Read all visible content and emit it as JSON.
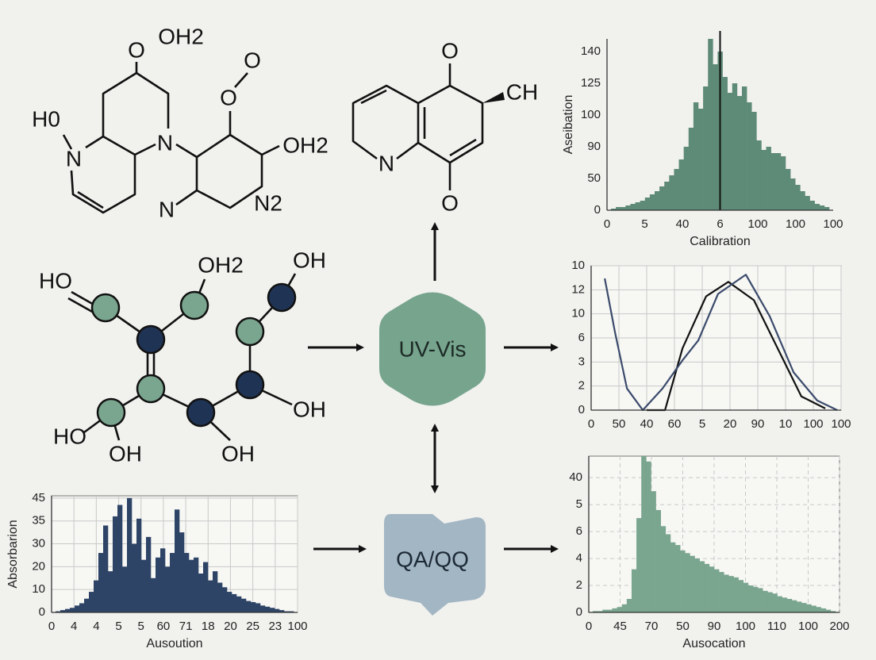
{
  "molecule_1": {
    "atoms": [
      "O",
      "OH2",
      "H0",
      "N",
      "N",
      "O",
      "O",
      "OH2",
      "N",
      "N2"
    ]
  },
  "molecule_2": {
    "atoms": [
      "O",
      "CH",
      "N",
      "O"
    ]
  },
  "molecule_3": {
    "atoms": [
      "HO",
      "OH2",
      "OH",
      "OH",
      "HO",
      "OH",
      "OH"
    ]
  },
  "nodes": [
    {
      "label": "UV-Vis"
    },
    {
      "label": "QA/QQ"
    }
  ],
  "charts": [
    {
      "type": "bar",
      "xlabel": "Calibration",
      "ylabel": "Aseibation",
      "color": "#5e8a78",
      "grid": false,
      "xlim": [
        0,
        6
      ],
      "ylim": [
        0,
        5.4
      ],
      "xticks": [
        0,
        {
          "value": 1,
          "label": "5"
        },
        {
          "value": 2,
          "label": "40"
        },
        {
          "value": 3,
          "label": "6"
        },
        {
          "value": 4,
          "label": "100"
        },
        {
          "value": 5,
          "label": "100"
        },
        {
          "value": 6,
          "label": "100"
        }
      ],
      "yticks": [
        0,
        {
          "value": 1,
          "label": "50"
        },
        {
          "value": 2,
          "label": "90"
        },
        {
          "value": 3,
          "label": "100"
        },
        {
          "value": 4,
          "label": "125"
        },
        {
          "value": 5,
          "label": "140"
        }
      ],
      "marker_x": 3,
      "values": [
        0.05,
        0.1,
        0.1,
        0.15,
        0.2,
        0.25,
        0.3,
        0.4,
        0.5,
        0.6,
        0.75,
        0.9,
        1.1,
        1.3,
        1.6,
        2.0,
        2.6,
        3.4,
        3.2,
        3.9,
        5.4,
        4.6,
        5.0,
        4.2,
        3.7,
        4.0,
        3.6,
        3.9,
        3.4,
        3.1,
        2.2,
        1.9,
        2.0,
        1.8,
        1.8,
        1.7,
        1.3,
        1.0,
        0.8,
        0.6,
        0.45,
        0.3,
        0.2,
        0.15,
        0.1
      ]
    },
    {
      "type": "line",
      "grid": true,
      "xlim": [
        0,
        9
      ],
      "ylim": [
        0,
        6
      ],
      "xticks": [
        0,
        {
          "value": 1,
          "label": "50"
        },
        {
          "value": 2,
          "label": "40"
        },
        {
          "value": 3,
          "label": "60"
        },
        {
          "value": 4,
          "label": "5"
        },
        {
          "value": 5,
          "label": "20"
        },
        {
          "value": 6,
          "label": "90"
        },
        {
          "value": 7,
          "label": "10"
        },
        {
          "value": 8,
          "label": "100"
        },
        {
          "value": 9,
          "label": "100"
        }
      ],
      "yticks": [
        0,
        {
          "value": 1,
          "label": "2"
        },
        {
          "value": 2,
          "label": "3"
        },
        {
          "value": 3,
          "label": "6"
        },
        {
          "value": 4,
          "label": "10"
        },
        {
          "value": 5,
          "label": "12"
        },
        {
          "value": 6,
          "label": "10"
        }
      ],
      "series": [
        {
          "color": "#111111",
          "x": [
            2.0,
            2.66,
            3.29,
            4.14,
            4.94,
            5.86,
            6.86,
            7.57,
            8.43
          ],
          "y": [
            0,
            0,
            2.57,
            4.73,
            5.33,
            4.57,
            2.23,
            0.57,
            0.07
          ]
        },
        {
          "color": "#3a4a6b",
          "x": [
            0.49,
            0.86,
            1.29,
            1.86,
            2.57,
            3.29,
            3.86,
            4.57,
            5.57,
            6.43,
            7.29,
            8.14,
            8.86
          ],
          "y": [
            5.47,
            3.23,
            0.9,
            0,
            0.9,
            2.07,
            2.9,
            4.83,
            5.63,
            3.9,
            1.57,
            0.4,
            0
          ]
        }
      ]
    },
    {
      "type": "bar",
      "xlabel": "Ausocation",
      "color": "#7aa58e",
      "grid": true,
      "xlim": [
        0,
        8
      ],
      "ylim": [
        0,
        5.8
      ],
      "xticks": [
        0,
        {
          "value": 1,
          "label": "45"
        },
        {
          "value": 2,
          "label": "70"
        },
        {
          "value": 3,
          "label": "50"
        },
        {
          "value": 4,
          "label": "90"
        },
        {
          "value": 5,
          "label": "100"
        },
        {
          "value": 6,
          "label": "110"
        },
        {
          "value": 7,
          "label": "100"
        },
        {
          "value": 8,
          "label": "200"
        }
      ],
      "yticks": [
        0,
        {
          "value": 1,
          "label": "2"
        },
        {
          "value": 2,
          "label": "4"
        },
        {
          "value": 3,
          "label": "6"
        },
        {
          "value": 4,
          "label": "5"
        },
        {
          "value": 5,
          "label": "40"
        }
      ],
      "values": [
        0.05,
        0.05,
        0.1,
        0.1,
        0.15,
        0.2,
        0.3,
        0.5,
        1.6,
        3.5,
        5.8,
        5.6,
        4.5,
        3.8,
        3.2,
        2.9,
        2.6,
        2.5,
        2.3,
        2.2,
        2.1,
        2.0,
        1.9,
        1.8,
        1.7,
        1.6,
        1.5,
        1.4,
        1.35,
        1.3,
        1.2,
        1.1,
        1.0,
        0.95,
        0.9,
        0.8,
        0.75,
        0.7,
        0.6,
        0.55,
        0.5,
        0.45,
        0.4,
        0.35,
        0.3,
        0.25,
        0.2,
        0.15,
        0.1,
        0.05
      ]
    },
    {
      "type": "bar",
      "xlabel": "Ausoution",
      "ylabel": "Absorbarion",
      "color": "#2e4466",
      "grid": true,
      "xlim": [
        0,
        11
      ],
      "ylim": [
        0,
        5.1
      ],
      "xticks": [
        0,
        {
          "value": 1,
          "label": "4"
        },
        {
          "value": 2,
          "label": "4"
        },
        {
          "value": 3,
          "label": "5"
        },
        {
          "value": 4,
          "label": "5"
        },
        {
          "value": 5,
          "label": "60"
        },
        {
          "value": 6,
          "label": "71"
        },
        {
          "value": 7,
          "label": "18"
        },
        {
          "value": 8,
          "label": "20"
        },
        {
          "value": 9,
          "label": "25"
        },
        {
          "value": 10,
          "label": "23"
        },
        {
          "value": 11,
          "label": "100"
        }
      ],
      "yticks": [
        0,
        {
          "value": 1,
          "label": "10"
        },
        {
          "value": 2,
          "label": "20"
        },
        {
          "value": 3,
          "label": "30"
        },
        {
          "value": 4,
          "label": "35"
        },
        {
          "value": 5,
          "label": "45"
        }
      ],
      "values": [
        0.05,
        0.1,
        0.15,
        0.2,
        0.3,
        0.4,
        0.6,
        0.9,
        1.4,
        2.6,
        3.8,
        1.8,
        4.2,
        4.7,
        2.0,
        5.0,
        3.0,
        4.1,
        2.3,
        3.3,
        1.5,
        2.4,
        2.8,
        2.0,
        2.6,
        4.5,
        3.5,
        2.6,
        2.3,
        2.4,
        1.7,
        2.2,
        1.4,
        1.8,
        1.3,
        1.1,
        0.9,
        0.8,
        0.7,
        0.6,
        0.5,
        0.45,
        0.4,
        0.3,
        0.25,
        0.2,
        0.15,
        0.1,
        0.05,
        0.05
      ]
    }
  ]
}
